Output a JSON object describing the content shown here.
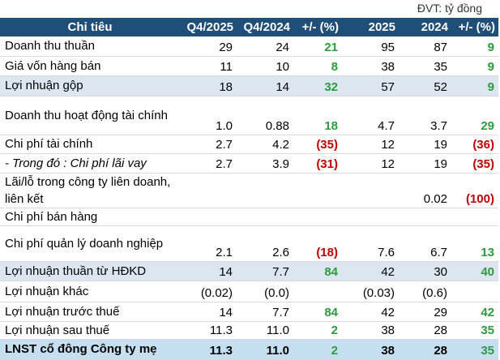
{
  "unit": "ĐVT: tỷ đồng",
  "table": {
    "header": [
      "Chỉ tiêu",
      "Q4/2025",
      "Q4/2024",
      "+/- (%)",
      "2025",
      "2024",
      "+/- (%)"
    ],
    "rows": [
      [
        "Doanh thu thuần",
        "29",
        "24",
        "21",
        "95",
        "87",
        "9"
      ],
      [
        "Giá vốn hàng bán",
        "11",
        "10",
        "8",
        "38",
        "35",
        "9"
      ],
      [
        "Lợi nhuận gộp",
        "18",
        "14",
        "32",
        "57",
        "52",
        "9"
      ],
      [
        "Doanh thu hoạt động tài chính",
        "1.0",
        "0.88",
        "18",
        "4.7",
        "3.7",
        "29"
      ],
      [
        "Chi phí tài chính",
        "2.7",
        "4.2",
        "(35)",
        "12",
        "19",
        "(36)"
      ],
      [
        "- Trong đó : Chi phí lãi vay",
        "2.7",
        "3.9",
        "(31)",
        "12",
        "19",
        "(35)"
      ],
      [
        "Lãi/lỗ trong công ty liên doanh, liên kết",
        null,
        null,
        null,
        null,
        "0.02",
        "(100)"
      ],
      [
        "Chi phí bán hàng",
        null,
        null,
        null,
        null,
        null,
        null
      ],
      [
        "Chi phí quản lý doanh nghiệp",
        "2.1",
        "2.6",
        "(18)",
        "7.6",
        "6.7",
        "13"
      ],
      [
        "Lợi nhuận thuần từ HĐKD",
        "14",
        "7.7",
        "84",
        "42",
        "30",
        "40"
      ],
      [
        "Lợi nhuận khác",
        "(0.02)",
        "(0.0)",
        null,
        "(0.03)",
        "(0.6)",
        null
      ],
      [
        "Lợi nhuận trước thuế",
        "14",
        "7.7",
        "84",
        "42",
        "29",
        "42"
      ],
      [
        "Lợi nhuận sau thuế",
        "11.3",
        "11.0",
        "2",
        "38",
        "28",
        "35"
      ],
      [
        "LNST cổ đông Công ty mẹ",
        "11.3",
        "11.0",
        "2",
        "38",
        "28",
        "35"
      ]
    ]
  }
}
